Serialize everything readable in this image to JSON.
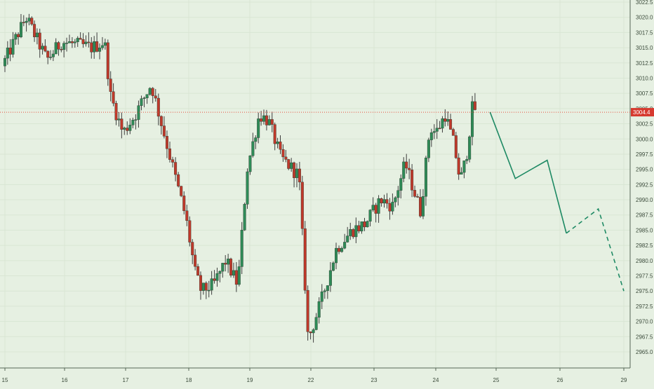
{
  "chart_data": {
    "type": "candlestick",
    "colors": {
      "background": "#e6f0e2",
      "up": "#2e8b57",
      "down": "#c0392b",
      "wick": "#3d3d3d",
      "grid": "#d9e6d4",
      "price_line": "#e74c3c",
      "price_label_bg": "#d63a2f",
      "projection": "#1e8a64",
      "axis_text": "#3a4a3a"
    },
    "x_axis": {
      "ticks": [
        {
          "label": "15",
          "day": 0
        },
        {
          "label": "16",
          "day": 1
        },
        {
          "label": "17",
          "day": 2
        },
        {
          "label": "18",
          "day": 3
        },
        {
          "label": "19",
          "day": 4
        },
        {
          "label": "22",
          "day": 5
        },
        {
          "label": "23",
          "day": 6
        },
        {
          "label": "24",
          "day": 7
        },
        {
          "label": "25",
          "day": 8
        },
        {
          "label": "26",
          "day": 9
        },
        {
          "label": "29",
          "day": 10
        }
      ]
    },
    "y_axis": {
      "ticks": [
        "2965.0",
        "2967.5",
        "2970.0",
        "2972.5",
        "2975.0",
        "2977.5",
        "2980.0",
        "2982.5",
        "2985.0",
        "2987.5",
        "2990.0",
        "2992.5",
        "2995.0",
        "2997.5",
        "3000.0",
        "3002.5",
        "3005.0",
        "3007.5",
        "3010.0",
        "3012.5",
        "3015.0",
        "3017.5",
        "3020.0",
        "3022.5"
      ],
      "ylim": [
        2963.5,
        3022.5
      ]
    },
    "current_price": 3004.4,
    "current_price_label": "3004.4",
    "waypoints": [
      {
        "day": 0.0,
        "price": 3012
      },
      {
        "day": 0.4,
        "price": 3020
      },
      {
        "day": 0.75,
        "price": 3013
      },
      {
        "day": 1.0,
        "price": 3016
      },
      {
        "day": 1.5,
        "price": 3015
      },
      {
        "day": 1.7,
        "price": 3016
      },
      {
        "day": 1.8,
        "price": 3007
      },
      {
        "day": 2.0,
        "price": 3001
      },
      {
        "day": 2.2,
        "price": 3004
      },
      {
        "day": 2.45,
        "price": 3009
      },
      {
        "day": 2.6,
        "price": 3003
      },
      {
        "day": 2.85,
        "price": 2993
      },
      {
        "day": 3.0,
        "price": 2987
      },
      {
        "day": 3.15,
        "price": 2978
      },
      {
        "day": 3.25,
        "price": 2975
      },
      {
        "day": 3.45,
        "price": 2976
      },
      {
        "day": 3.65,
        "price": 2980
      },
      {
        "day": 3.85,
        "price": 2976
      },
      {
        "day": 4.0,
        "price": 2995
      },
      {
        "day": 4.2,
        "price": 3004
      },
      {
        "day": 4.35,
        "price": 3003
      },
      {
        "day": 4.55,
        "price": 2997
      },
      {
        "day": 4.85,
        "price": 2994
      },
      {
        "day": 5.0,
        "price": 2967
      },
      {
        "day": 5.2,
        "price": 2973
      },
      {
        "day": 5.45,
        "price": 2982
      },
      {
        "day": 5.7,
        "price": 2985
      },
      {
        "day": 5.9,
        "price": 2986
      },
      {
        "day": 6.15,
        "price": 2990
      },
      {
        "day": 6.35,
        "price": 2989
      },
      {
        "day": 6.55,
        "price": 2996
      },
      {
        "day": 6.8,
        "price": 2988
      },
      {
        "day": 6.95,
        "price": 3002
      },
      {
        "day": 7.05,
        "price": 3001
      },
      {
        "day": 7.2,
        "price": 3004
      },
      {
        "day": 7.35,
        "price": 2999
      },
      {
        "day": 7.45,
        "price": 2993
      },
      {
        "day": 7.55,
        "price": 2997
      },
      {
        "day": 7.65,
        "price": 3005
      }
    ],
    "projection_solid": [
      {
        "day": 7.9,
        "price": 3004.4
      },
      {
        "day": 8.3,
        "price": 2993.5
      },
      {
        "day": 8.8,
        "price": 2996.5
      },
      {
        "day": 9.1,
        "price": 2984.5
      }
    ],
    "projection_dashed": [
      {
        "day": 9.1,
        "price": 2984.5
      },
      {
        "day": 9.6,
        "price": 2988.5
      },
      {
        "day": 10.0,
        "price": 2975
      }
    ]
  }
}
